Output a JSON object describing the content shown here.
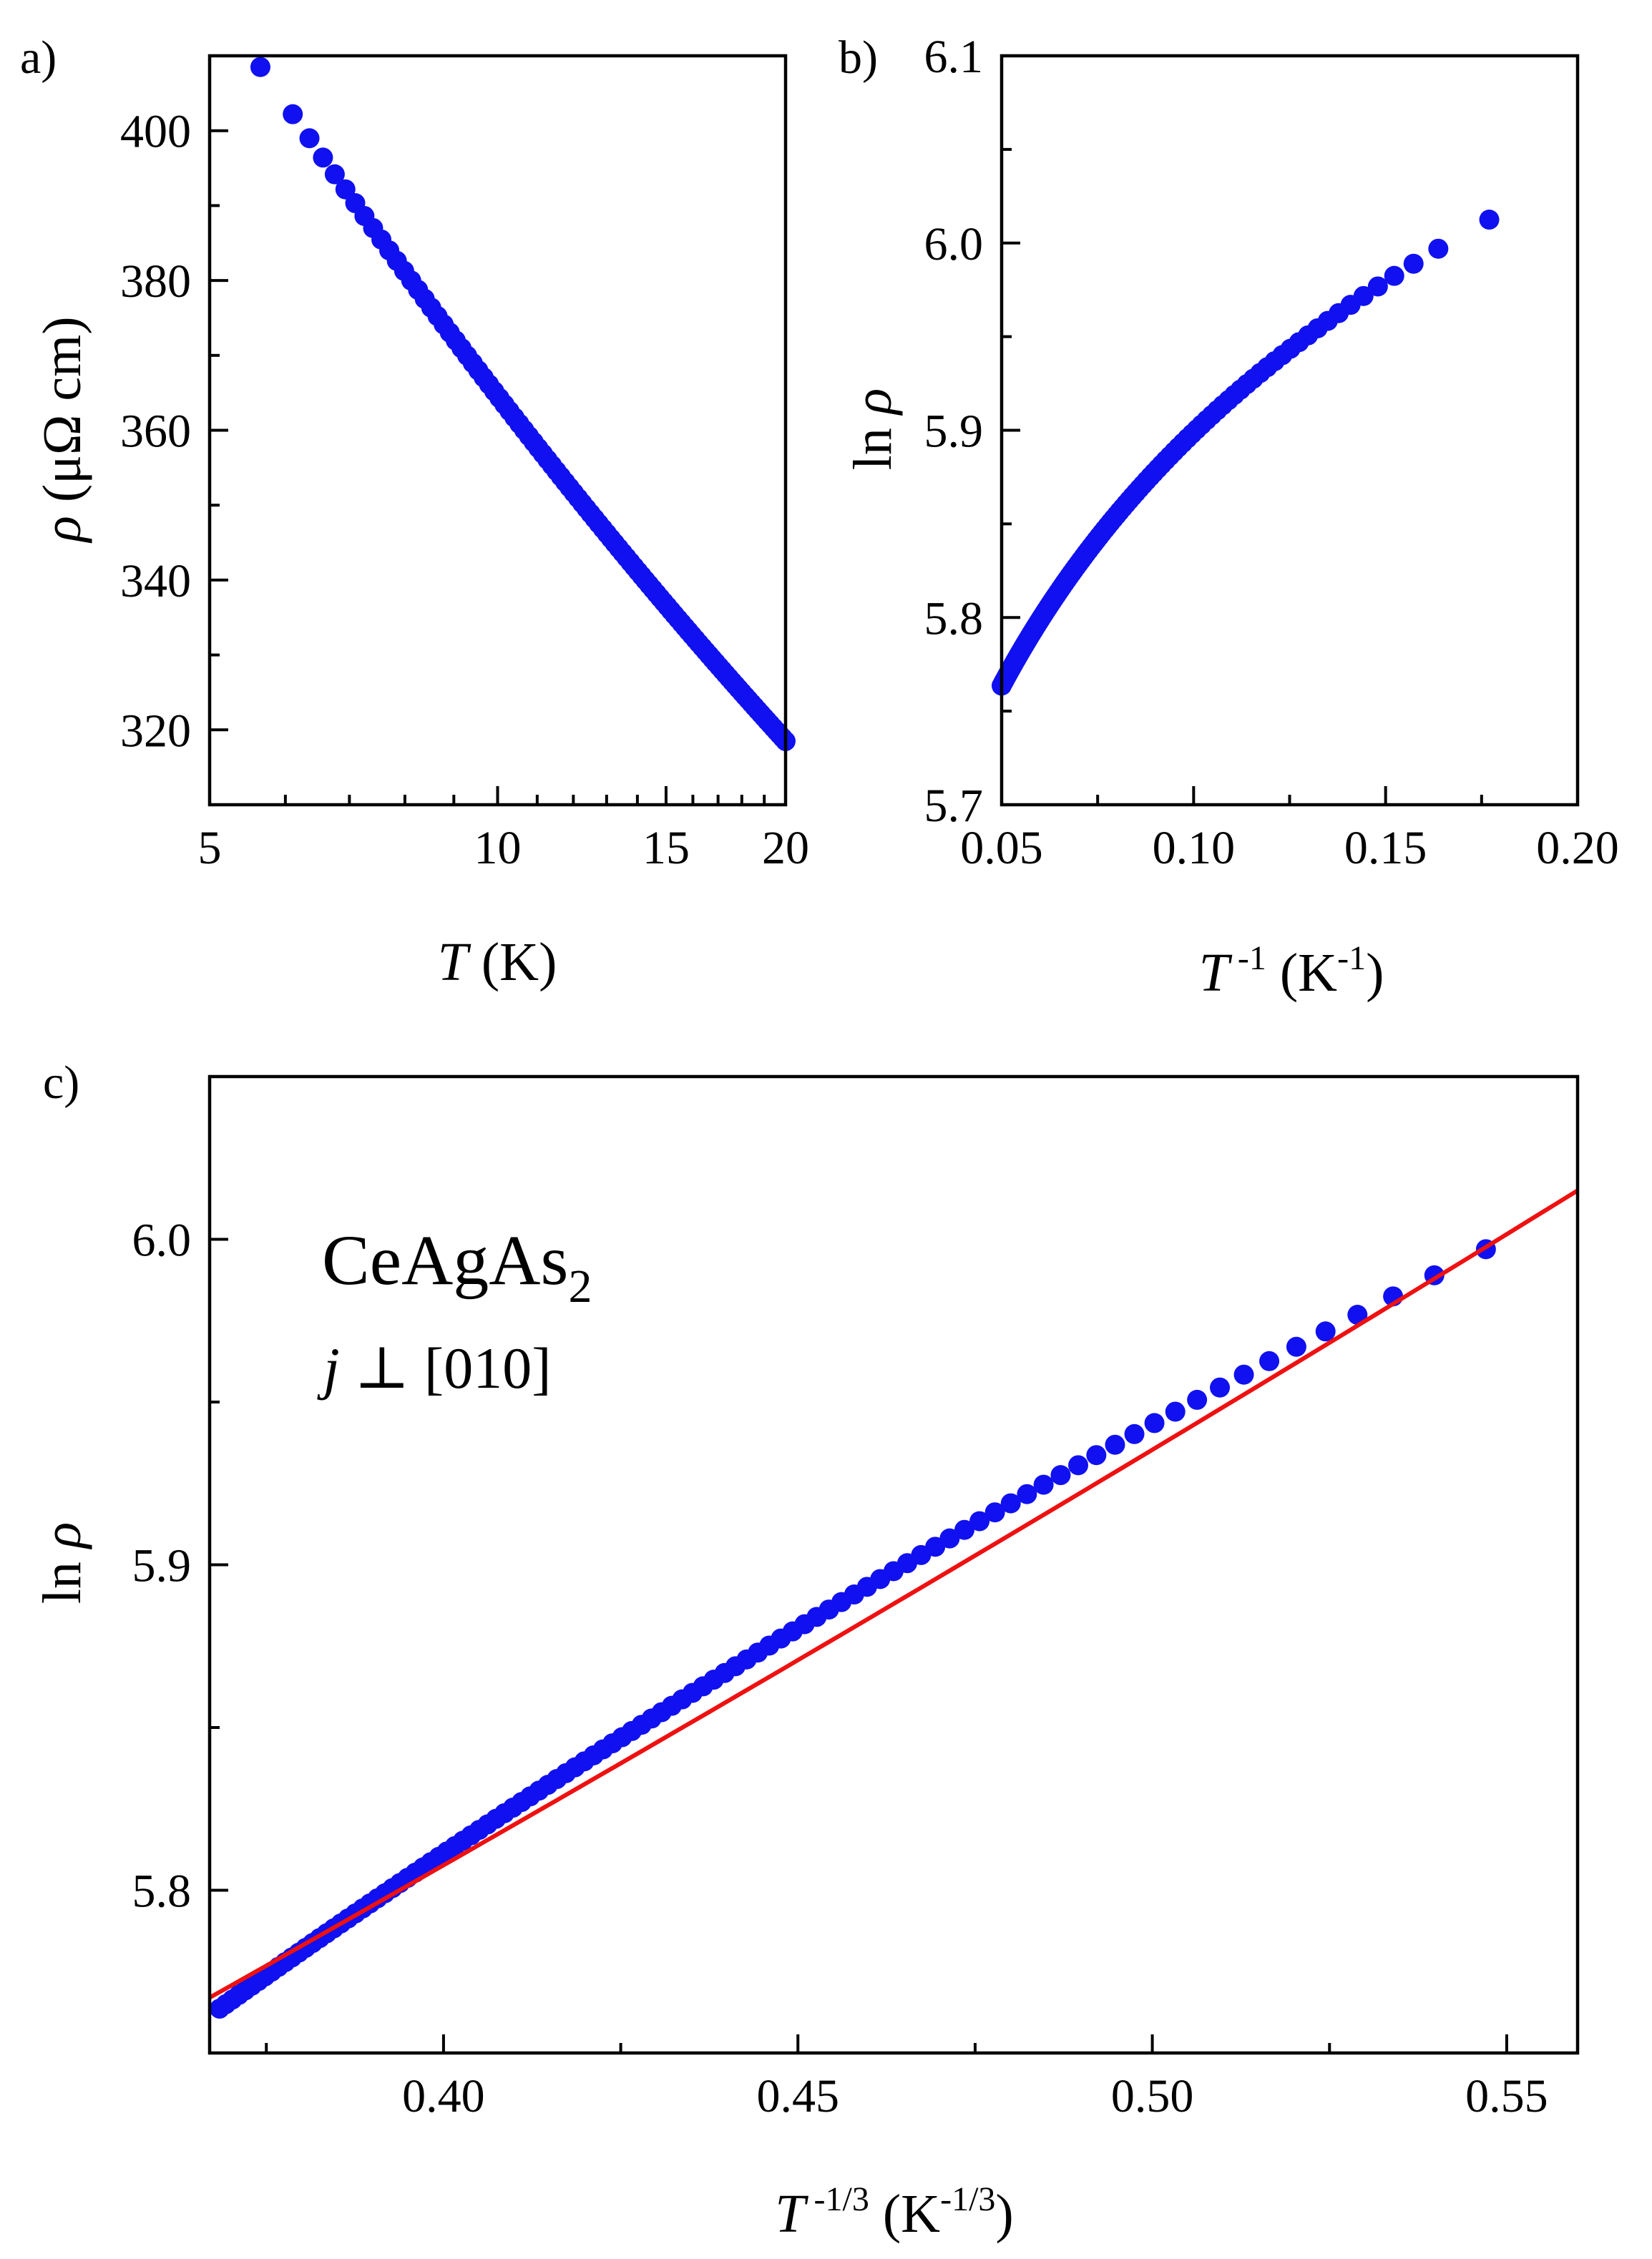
{
  "colors": {
    "points": "#1010f0",
    "fit_line": "#ee1111",
    "axes": "#000000"
  },
  "chart_data": [
    {
      "id": "a",
      "type": "scatter",
      "panel_label": "a)",
      "title": "",
      "xscale": "log",
      "xlim": [
        5,
        20
      ],
      "ylim": [
        310,
        410
      ],
      "xticks": [
        5,
        10,
        15,
        20
      ],
      "xtick_labels": [
        "5",
        "10",
        "15",
        "20"
      ],
      "yticks": [
        320,
        340,
        360,
        380,
        400
      ],
      "ytick_labels": [
        "320",
        "340",
        "360",
        "380",
        "400"
      ],
      "xlabel": {
        "sym": "T",
        "unit": " (K)"
      },
      "ylabel": {
        "sym": "ρ",
        "unit": " (μΩ cm)"
      },
      "legend": "none",
      "series": [
        {
          "name": "ρ(T)",
          "model": {
            "x_start": 5.65,
            "x_end": 20.0,
            "y_start": 408.5,
            "y_end": 318.5,
            "curvature": 13,
            "count": 105
          }
        }
      ]
    },
    {
      "id": "b",
      "type": "scatter",
      "panel_label": "b)",
      "title": "",
      "xscale": "linear",
      "xlim": [
        0.05,
        0.2
      ],
      "ylim": [
        5.7,
        6.1
      ],
      "xticks": [
        0.05,
        0.1,
        0.15,
        0.2
      ],
      "xtick_labels": [
        "0.05",
        "0.10",
        "0.15",
        "0.20"
      ],
      "yticks": [
        5.7,
        5.8,
        5.9,
        6.0,
        6.1
      ],
      "ytick_labels": [
        "5.7",
        "5.8",
        "5.9",
        "6.0",
        "6.1"
      ],
      "xlabel": {
        "sym": "T",
        "sup1": " -1",
        "unit": " (K",
        "sup2": "-1",
        "close": ")"
      },
      "ylabel": {
        "pre": "ln ",
        "sym": "ρ"
      },
      "legend": "none",
      "series": [
        {
          "name": "ln ρ vs 1/T",
          "derived_from": "a"
        }
      ]
    },
    {
      "id": "c",
      "type": "scatter",
      "panel_label": "c)",
      "title": "",
      "xscale": "linear",
      "xlim": [
        0.367,
        0.56
      ],
      "ylim": [
        5.75,
        6.05
      ],
      "xticks": [
        0.4,
        0.45,
        0.5,
        0.55
      ],
      "xtick_labels": [
        "0.40",
        "0.45",
        "0.50",
        "0.55"
      ],
      "yticks": [
        5.8,
        5.9,
        6.0
      ],
      "ytick_labels": [
        "5.8",
        "5.9",
        "6.0"
      ],
      "xlabel": {
        "sym": "T",
        "sup1": " -1/3",
        "unit": " (K",
        "sup2": "-1/3",
        "close": ")"
      },
      "ylabel": {
        "pre": "ln ",
        "sym": "ρ"
      },
      "legend": "none",
      "annotations": {
        "compound": "CeAgAs",
        "compound_sub": "2",
        "current_sym": "j",
        "current_rest": " ⊥ [010]"
      },
      "series": [
        {
          "name": "ln ρ vs T^-1/3",
          "derived_from": "a"
        },
        {
          "name": "fit",
          "kind": "line",
          "x": [
            0.367,
            0.56
          ],
          "y": [
            5.767,
            6.015
          ],
          "curvature": 0.012
        }
      ]
    }
  ]
}
